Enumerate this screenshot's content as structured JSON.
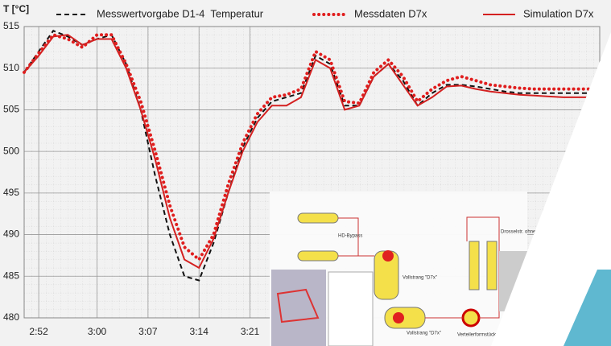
{
  "chart_data": {
    "type": "line",
    "y_label": "T [°C]",
    "x": [
      170,
      172,
      174,
      176,
      178,
      180,
      182,
      184,
      186,
      188,
      190,
      192,
      194,
      196,
      198,
      200,
      202,
      204,
      206,
      208,
      210,
      212,
      214,
      216,
      218,
      220,
      222,
      224,
      226,
      228,
      230,
      232,
      234,
      236,
      238,
      240,
      242,
      244,
      246,
      248
    ],
    "xlim": [
      170,
      249
    ],
    "xticks": [
      {
        "value": 172,
        "label": "2:52"
      },
      {
        "value": 180,
        "label": "3:00"
      },
      {
        "value": 187,
        "label": "3:07"
      },
      {
        "value": 194,
        "label": "3:14"
      },
      {
        "value": 201,
        "label": "3:21"
      }
    ],
    "ylim": [
      480,
      515
    ],
    "yticks": [
      480,
      485,
      490,
      495,
      500,
      505,
      510,
      515
    ],
    "grid": true,
    "series": [
      {
        "name": "Messwertvorgabe D1-4  Temperatur",
        "color": "#111111",
        "style": "dashed",
        "values": [
          509.5,
          512,
          514.5,
          513.8,
          512.8,
          513.5,
          514,
          510.5,
          505,
          497,
          490,
          485,
          484.5,
          489,
          495,
          500.5,
          504,
          506,
          506.5,
          507,
          511.5,
          510.5,
          505.5,
          505.5,
          509,
          510.5,
          508.5,
          505.5,
          507,
          508,
          508,
          507.8,
          507.5,
          507.2,
          507,
          507,
          507,
          507,
          507,
          507
        ]
      },
      {
        "name": "Messdaten D7x",
        "color": "#e01e1e",
        "style": "dotted",
        "values": [
          509.5,
          511.8,
          514,
          513.5,
          512.5,
          514,
          514,
          510.5,
          506,
          500,
          493.5,
          488.5,
          487,
          490,
          496,
          501,
          504.5,
          506.5,
          506.8,
          507.5,
          512,
          511,
          506,
          505.8,
          509.5,
          511,
          509,
          506,
          507.5,
          508.5,
          509,
          508.5,
          508,
          507.8,
          507.6,
          507.5,
          507.5,
          507.5,
          507.5,
          507.5
        ]
      },
      {
        "name": "Simulation D7x",
        "color": "#d42020",
        "style": "solid",
        "values": [
          509.5,
          511.5,
          513.8,
          514,
          512.8,
          513.5,
          513.5,
          510,
          505,
          499,
          492,
          487,
          486,
          489.5,
          495,
          500,
          503.5,
          505.5,
          505.5,
          506.5,
          511,
          510,
          505,
          505.5,
          509,
          510.5,
          508,
          505.5,
          506.5,
          507.8,
          507.9,
          507.5,
          507.2,
          507,
          506.8,
          506.7,
          506.6,
          506.5,
          506.5,
          506.5
        ]
      }
    ]
  },
  "overlay": {
    "labels": [
      "HD-Bypass",
      "Vollstrang \"D7x\"",
      "Vollstrang \"D7x\"",
      "Verteilerformstück Wandtemperatur",
      "Drosselstr. ohne Bew."
    ]
  }
}
